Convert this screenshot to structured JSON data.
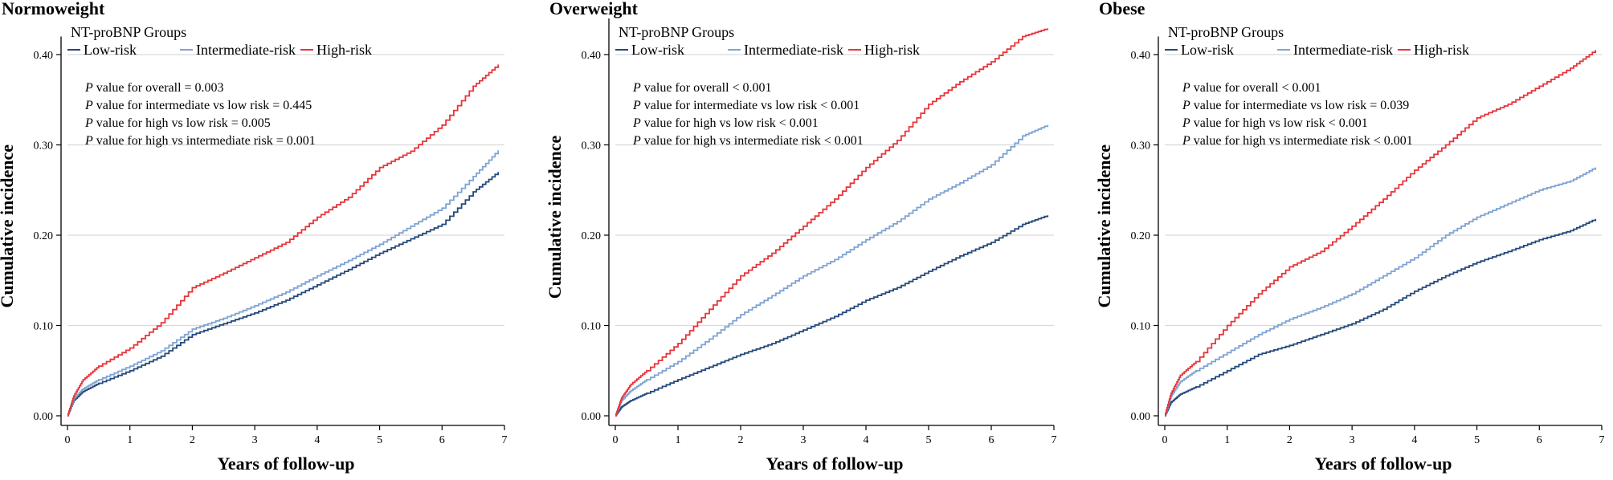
{
  "chart_data": [
    {
      "type": "line",
      "step": true,
      "title": "Normoweight",
      "xlabel": "Years of follow-up",
      "ylabel": "Cumulative incidence",
      "xlim": [
        0,
        7
      ],
      "ylim": [
        0,
        0.42
      ],
      "x_ticks": [
        "0",
        "1",
        "2",
        "3",
        "4",
        "5",
        "6",
        "7"
      ],
      "y_ticks": [
        "0.00",
        "0.10",
        "0.20",
        "0.30",
        "0.40"
      ],
      "grid": "horizontal",
      "legend": {
        "title": "NT-proBNP Groups",
        "placement": "top-left",
        "entries": [
          "Low-risk",
          "Intermediate-risk",
          "High-risk"
        ]
      },
      "annotations": [
        {
          "italic": "P",
          "text": " value for overall = 0.003"
        },
        {
          "italic": "P",
          "text": " value for  intermediate vs low risk = 0.445"
        },
        {
          "italic": "P",
          "text": " value for  high vs low risk = 0.005"
        },
        {
          "italic": "P",
          "text": " value for  high vs intermediate risk = 0.001"
        }
      ],
      "x": [
        0,
        0.1,
        0.25,
        0.5,
        1.0,
        1.5,
        2.0,
        2.5,
        3.0,
        3.5,
        4.0,
        4.5,
        5.0,
        5.5,
        6.0,
        6.5,
        6.9
      ],
      "series": [
        {
          "name": "Low-risk",
          "color": "#24497a",
          "values": [
            0,
            0.017,
            0.027,
            0.036,
            0.05,
            0.066,
            0.09,
            0.102,
            0.114,
            0.128,
            0.145,
            0.162,
            0.18,
            0.196,
            0.212,
            0.248,
            0.27
          ]
        },
        {
          "name": "Intermediate-risk",
          "color": "#7ea3d2",
          "values": [
            0,
            0.019,
            0.03,
            0.04,
            0.055,
            0.072,
            0.096,
            0.108,
            0.122,
            0.137,
            0.155,
            0.172,
            0.19,
            0.21,
            0.23,
            0.265,
            0.294
          ]
        },
        {
          "name": "High-risk",
          "color": "#e8343a",
          "values": [
            0,
            0.022,
            0.04,
            0.055,
            0.075,
            0.103,
            0.142,
            0.158,
            0.175,
            0.192,
            0.22,
            0.242,
            0.275,
            0.293,
            0.322,
            0.365,
            0.389
          ]
        }
      ]
    },
    {
      "type": "line",
      "step": true,
      "title": "Overweight",
      "xlabel": "Years of follow-up",
      "ylabel": "Cumulative incidence",
      "xlim": [
        0,
        7
      ],
      "ylim": [
        0,
        0.44
      ],
      "x_ticks": [
        "0",
        "1",
        "2",
        "3",
        "4",
        "5",
        "6",
        "7"
      ],
      "y_ticks": [
        "0.00",
        "0.10",
        "0.20",
        "0.30",
        "0.40"
      ],
      "grid": "horizontal",
      "legend": {
        "title": "NT-proBNP Groups",
        "placement": "top-left",
        "entries": [
          "Low-risk",
          "Intermediate-risk",
          "High-risk"
        ]
      },
      "annotations": [
        {
          "italic": "P",
          "text": " value for overall < 0.001"
        },
        {
          "italic": "P",
          "text": " value for  intermediate vs low risk < 0.001"
        },
        {
          "italic": "P",
          "text": " value for  high vs low risk < 0.001"
        },
        {
          "italic": "P",
          "text": " value for  high vs intermediate risk < 0.001"
        }
      ],
      "x": [
        0,
        0.1,
        0.25,
        0.5,
        1.0,
        1.5,
        2.0,
        2.5,
        3.0,
        3.5,
        4.0,
        4.5,
        5.0,
        5.5,
        6.0,
        6.5,
        6.9
      ],
      "series": [
        {
          "name": "Low-risk",
          "color": "#24497a",
          "values": [
            0,
            0.01,
            0.017,
            0.025,
            0.04,
            0.054,
            0.068,
            0.08,
            0.095,
            0.11,
            0.128,
            0.142,
            0.16,
            0.177,
            0.192,
            0.212,
            0.222
          ]
        },
        {
          "name": "Intermediate-risk",
          "color": "#7ea3d2",
          "values": [
            0,
            0.017,
            0.028,
            0.04,
            0.06,
            0.085,
            0.112,
            0.133,
            0.155,
            0.173,
            0.195,
            0.215,
            0.24,
            0.258,
            0.278,
            0.31,
            0.322
          ]
        },
        {
          "name": "High-risk",
          "color": "#e8343a",
          "values": [
            0,
            0.02,
            0.035,
            0.05,
            0.08,
            0.118,
            0.155,
            0.18,
            0.21,
            0.24,
            0.275,
            0.305,
            0.345,
            0.37,
            0.392,
            0.42,
            0.429
          ]
        }
      ]
    },
    {
      "type": "line",
      "step": true,
      "title": "Obese",
      "xlabel": "Years of follow-up",
      "ylabel": "Cumulative incidence",
      "xlim": [
        0,
        7
      ],
      "ylim": [
        0,
        0.42
      ],
      "x_ticks": [
        "0",
        "1",
        "2",
        "3",
        "4",
        "5",
        "6",
        "7"
      ],
      "y_ticks": [
        "0.00",
        "0.10",
        "0.20",
        "0.30",
        "0.40"
      ],
      "grid": "horizontal",
      "legend": {
        "title": "NT-proBNP Groups",
        "placement": "top-left",
        "entries": [
          "Low-risk",
          "Intermediate-risk",
          "High-risk"
        ]
      },
      "annotations": [
        {
          "italic": "P",
          "text": " value for overall  < 0.001"
        },
        {
          "italic": "P",
          "text": " value for  intermediate vs low risk = 0.039"
        },
        {
          "italic": "P",
          "text": " value for  high vs low risk < 0.001"
        },
        {
          "italic": "P",
          "text": " value for  high vs intermediate risk < 0.001"
        }
      ],
      "x": [
        0,
        0.1,
        0.25,
        0.5,
        1.0,
        1.5,
        2.0,
        2.5,
        3.0,
        3.5,
        4.0,
        4.5,
        5.0,
        5.5,
        6.0,
        6.5,
        6.9
      ],
      "series": [
        {
          "name": "Low-risk",
          "color": "#24497a",
          "values": [
            0,
            0.015,
            0.024,
            0.032,
            0.05,
            0.068,
            0.078,
            0.09,
            0.102,
            0.118,
            0.138,
            0.155,
            0.17,
            0.182,
            0.195,
            0.205,
            0.218
          ]
        },
        {
          "name": "Intermediate-risk",
          "color": "#7ea3d2",
          "values": [
            0,
            0.022,
            0.038,
            0.05,
            0.07,
            0.09,
            0.107,
            0.12,
            0.135,
            0.155,
            0.175,
            0.2,
            0.22,
            0.235,
            0.25,
            0.26,
            0.275
          ]
        },
        {
          "name": "High-risk",
          "color": "#e8343a",
          "values": [
            0,
            0.025,
            0.045,
            0.06,
            0.1,
            0.135,
            0.165,
            0.182,
            0.21,
            0.24,
            0.272,
            0.3,
            0.33,
            0.345,
            0.365,
            0.385,
            0.405
          ]
        }
      ]
    }
  ]
}
